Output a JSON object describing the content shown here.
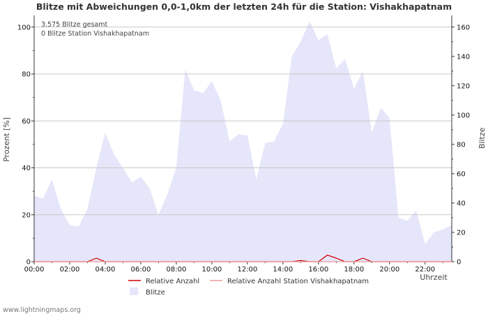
{
  "chart_data": {
    "type": "area",
    "title": "Blitze mit Abweichungen 0,0-1,0km der letzten 24h für die Station: Vishakhapatnam",
    "xlabel": "Uhrzeit",
    "ylabel_left": "Prozent   [%]",
    "ylabel_right": "Blitze",
    "x_ticks": [
      "00:00",
      "02:00",
      "04:00",
      "06:00",
      "08:00",
      "10:00",
      "12:00",
      "14:00",
      "16:00",
      "18:00",
      "20:00",
      "22:00"
    ],
    "y_left_ticks": [
      "0",
      "20",
      "40",
      "60",
      "80",
      "100"
    ],
    "y_right_ticks": [
      "0",
      "20",
      "40",
      "60",
      "80",
      "100",
      "120",
      "140",
      "160"
    ],
    "ylim_left": [
      0,
      105
    ],
    "ylim_right": [
      0,
      168
    ],
    "x_range_hours": [
      0,
      23.5
    ],
    "notes": [
      "3.575 Blitze gesamt",
      "0 Blitze Station Vishakhapatnam"
    ],
    "series": [
      {
        "name": "Blitze",
        "axis": "right",
        "color": "#e6e6fa",
        "x": [
          0,
          0.5,
          1,
          1.5,
          2,
          2.5,
          3,
          3.5,
          4,
          4.5,
          5,
          5.5,
          6,
          6.5,
          7,
          7.5,
          8,
          8.5,
          9,
          9.5,
          10,
          10.5,
          11,
          11.5,
          12,
          12.5,
          13,
          13.5,
          14,
          14.5,
          15,
          15.5,
          16,
          16.5,
          17,
          17.5,
          18,
          18.5,
          19,
          19.5,
          20,
          20.5,
          21,
          21.5,
          22,
          22.5,
          23,
          23.5
        ],
        "values": [
          45,
          43,
          56,
          36,
          25,
          24,
          36,
          64,
          88,
          73,
          64,
          54,
          58,
          50,
          32,
          46,
          64,
          131,
          117,
          115,
          123,
          110,
          82,
          87,
          86,
          56,
          81,
          82,
          94,
          140,
          150,
          164,
          151,
          155,
          132,
          138,
          118,
          130,
          88,
          105,
          98,
          30,
          28,
          35,
          12,
          20,
          22,
          25
        ]
      },
      {
        "name": "Relative Anzahl",
        "axis": "left",
        "color": "#cc0000",
        "x": [
          0,
          3,
          3.5,
          4,
          14.5,
          15,
          15.5,
          16,
          16.5,
          17,
          17.5,
          18,
          18.5,
          19,
          23.5
        ],
        "values": [
          0,
          0,
          1.5,
          0,
          0,
          0.5,
          0,
          0,
          2.8,
          1.5,
          0,
          0,
          1.5,
          0,
          0
        ]
      },
      {
        "name": "Relative Anzahl Station Vishakhapatnam",
        "axis": "left",
        "color": "#ee9999",
        "x": [
          0,
          23.5
        ],
        "values": [
          0,
          0
        ]
      }
    ],
    "legend": [
      "Relative Anzahl",
      "Relative Anzahl Station Vishakhapatnam",
      "Blitze"
    ]
  },
  "footer": "www.lightningmaps.org"
}
